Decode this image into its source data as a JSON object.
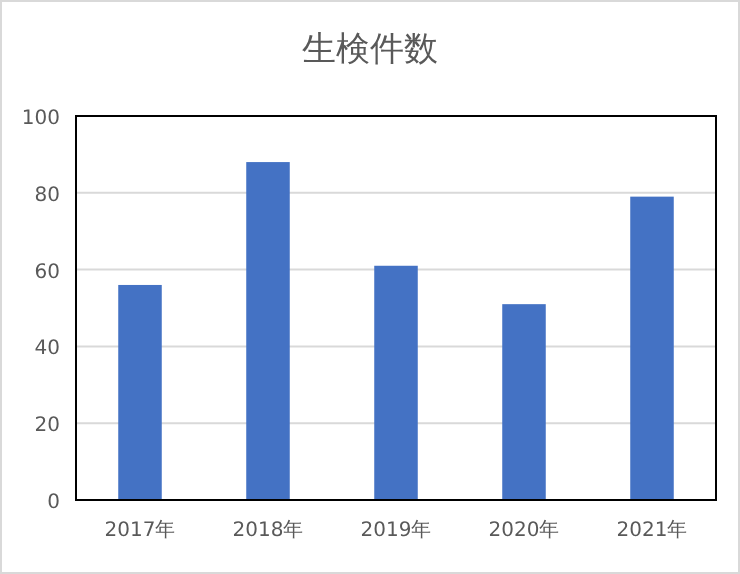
{
  "chart_data": {
    "type": "bar",
    "title": "生検件数",
    "categories": [
      "2017年",
      "2018年",
      "2019年",
      "2020年",
      "2021年"
    ],
    "values": [
      56,
      88,
      61,
      51,
      79
    ],
    "color": "#4472c4",
    "ylim": [
      0,
      100
    ],
    "yticks": [
      0,
      20,
      40,
      60,
      80,
      100
    ],
    "grid": "y"
  }
}
